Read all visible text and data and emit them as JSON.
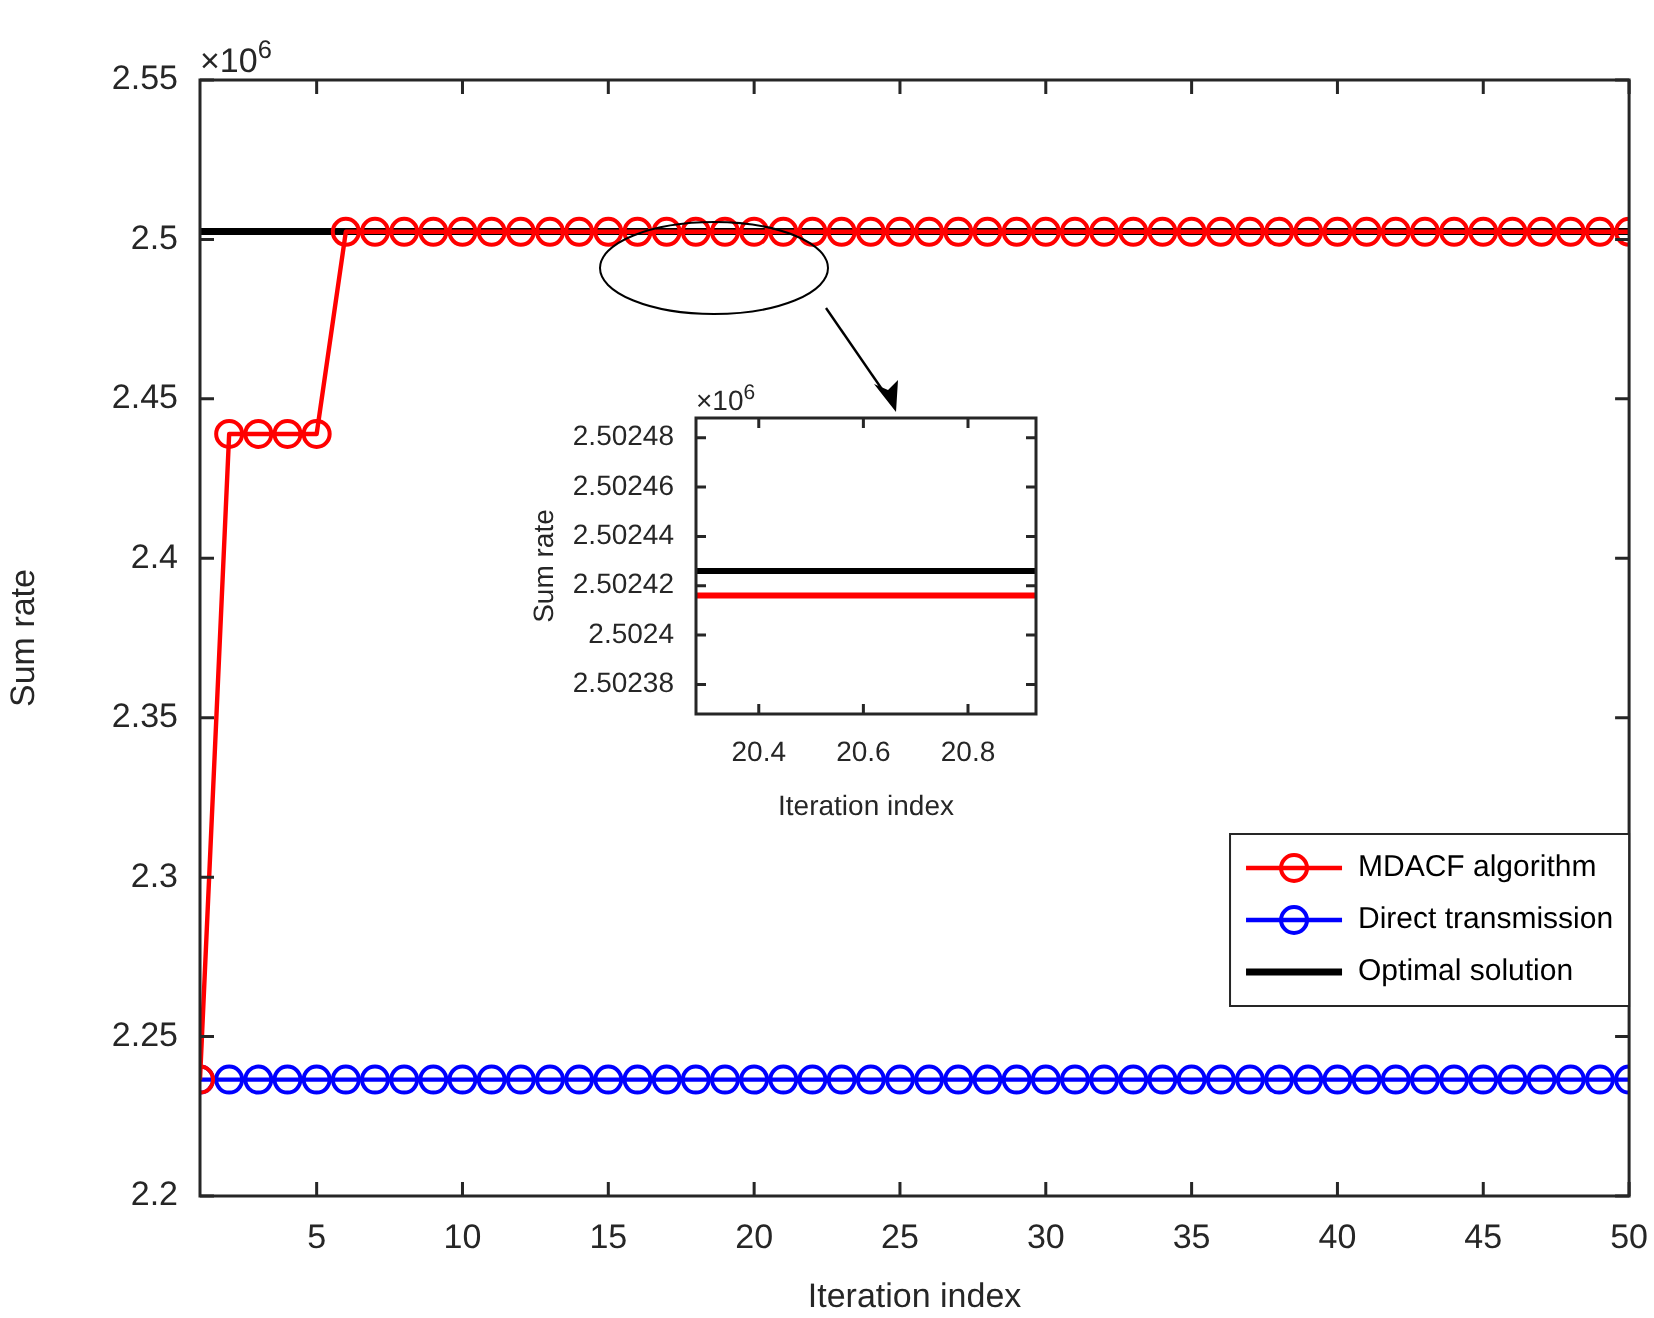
{
  "chart_data": [
    {
      "type": "line",
      "xlabel": "Iteration index",
      "ylabel": "Sum rate",
      "annotations": [
        "×10$^{6}$"
      ],
      "x": [
        1,
        2,
        3,
        4,
        5,
        6,
        7,
        8,
        9,
        10,
        11,
        12,
        13,
        14,
        15,
        16,
        17,
        18,
        19,
        20,
        21,
        22,
        23,
        24,
        25,
        26,
        27,
        28,
        29,
        30,
        31,
        32,
        33,
        34,
        35,
        36,
        37,
        38,
        39,
        40,
        41,
        42,
        43,
        44,
        45,
        46,
        47,
        48,
        49,
        50
      ],
      "series": [
        {
          "name": "MDACF algorithm",
          "color": "#ff0000",
          "marker": "circle",
          "values": [
            2.2365,
            2.439,
            2.439,
            2.439,
            2.439,
            2.5024,
            2.5024,
            2.5024,
            2.5024,
            2.5024,
            2.5024,
            2.5024,
            2.5024,
            2.5024,
            2.5024,
            2.5024,
            2.5024,
            2.5024,
            2.5024,
            2.5024,
            2.5024,
            2.5024,
            2.5024,
            2.5024,
            2.5024,
            2.5024,
            2.5024,
            2.5024,
            2.5024,
            2.5024,
            2.5024,
            2.5024,
            2.5024,
            2.5024,
            2.5024,
            2.5024,
            2.5024,
            2.5024,
            2.5024,
            2.5024,
            2.5024,
            2.5024,
            2.5024,
            2.5024,
            2.5024,
            2.5024,
            2.5024,
            2.5024,
            2.5024,
            2.5024
          ]
        },
        {
          "name": "Direct transmission",
          "color": "#0000ff",
          "marker": "circle",
          "values": [
            2.2365,
            2.2365,
            2.2365,
            2.2365,
            2.2365,
            2.2365,
            2.2365,
            2.2365,
            2.2365,
            2.2365,
            2.2365,
            2.2365,
            2.2365,
            2.2365,
            2.2365,
            2.2365,
            2.2365,
            2.2365,
            2.2365,
            2.2365,
            2.2365,
            2.2365,
            2.2365,
            2.2365,
            2.2365,
            2.2365,
            2.2365,
            2.2365,
            2.2365,
            2.2365,
            2.2365,
            2.2365,
            2.2365,
            2.2365,
            2.2365,
            2.2365,
            2.2365,
            2.2365,
            2.2365,
            2.2365,
            2.2365,
            2.2365,
            2.2365,
            2.2365,
            2.2365,
            2.2365,
            2.2365,
            2.2365,
            2.2365,
            2.2365
          ]
        },
        {
          "name": "Optimal solution",
          "color": "#000000",
          "marker": "none",
          "x": [
            1,
            50
          ],
          "values": [
            2.5025,
            2.5025
          ]
        }
      ],
      "xlim": [
        1,
        50
      ],
      "xticks": [
        5,
        10,
        15,
        20,
        25,
        30,
        35,
        40,
        45,
        50
      ],
      "ylim": [
        2.2,
        2.55
      ],
      "yticks": [
        2.2,
        2.25,
        2.3,
        2.35,
        2.4,
        2.45,
        2.5,
        2.55
      ],
      "grid": false,
      "legend": "bottom right",
      "line_style": "solid"
    },
    {
      "type": "line",
      "xlabel": "Iteration index",
      "ylabel": "Sum rate",
      "annotations": [
        "×10$^{6}$"
      ],
      "x": [
        20.28,
        20.93
      ],
      "series": [
        {
          "color": "#ff0000",
          "values": [
            2.502416,
            2.502416
          ]
        },
        {
          "color": "#000000",
          "values": [
            2.502426,
            2.502426
          ]
        }
      ],
      "xlim": [
        20.28,
        20.93
      ],
      "xticks": [
        20.4,
        20.6,
        20.8
      ],
      "ylim": [
        2.502368,
        2.502488
      ],
      "yticks": [
        2.50238,
        {
          "value": 2.5024,
          "label": "2.5024"
        },
        2.50242,
        2.50244,
        2.50246,
        2.50248
      ],
      "grid": false,
      "legend": false,
      "marker": "none",
      "line_style": "solid"
    }
  ]
}
